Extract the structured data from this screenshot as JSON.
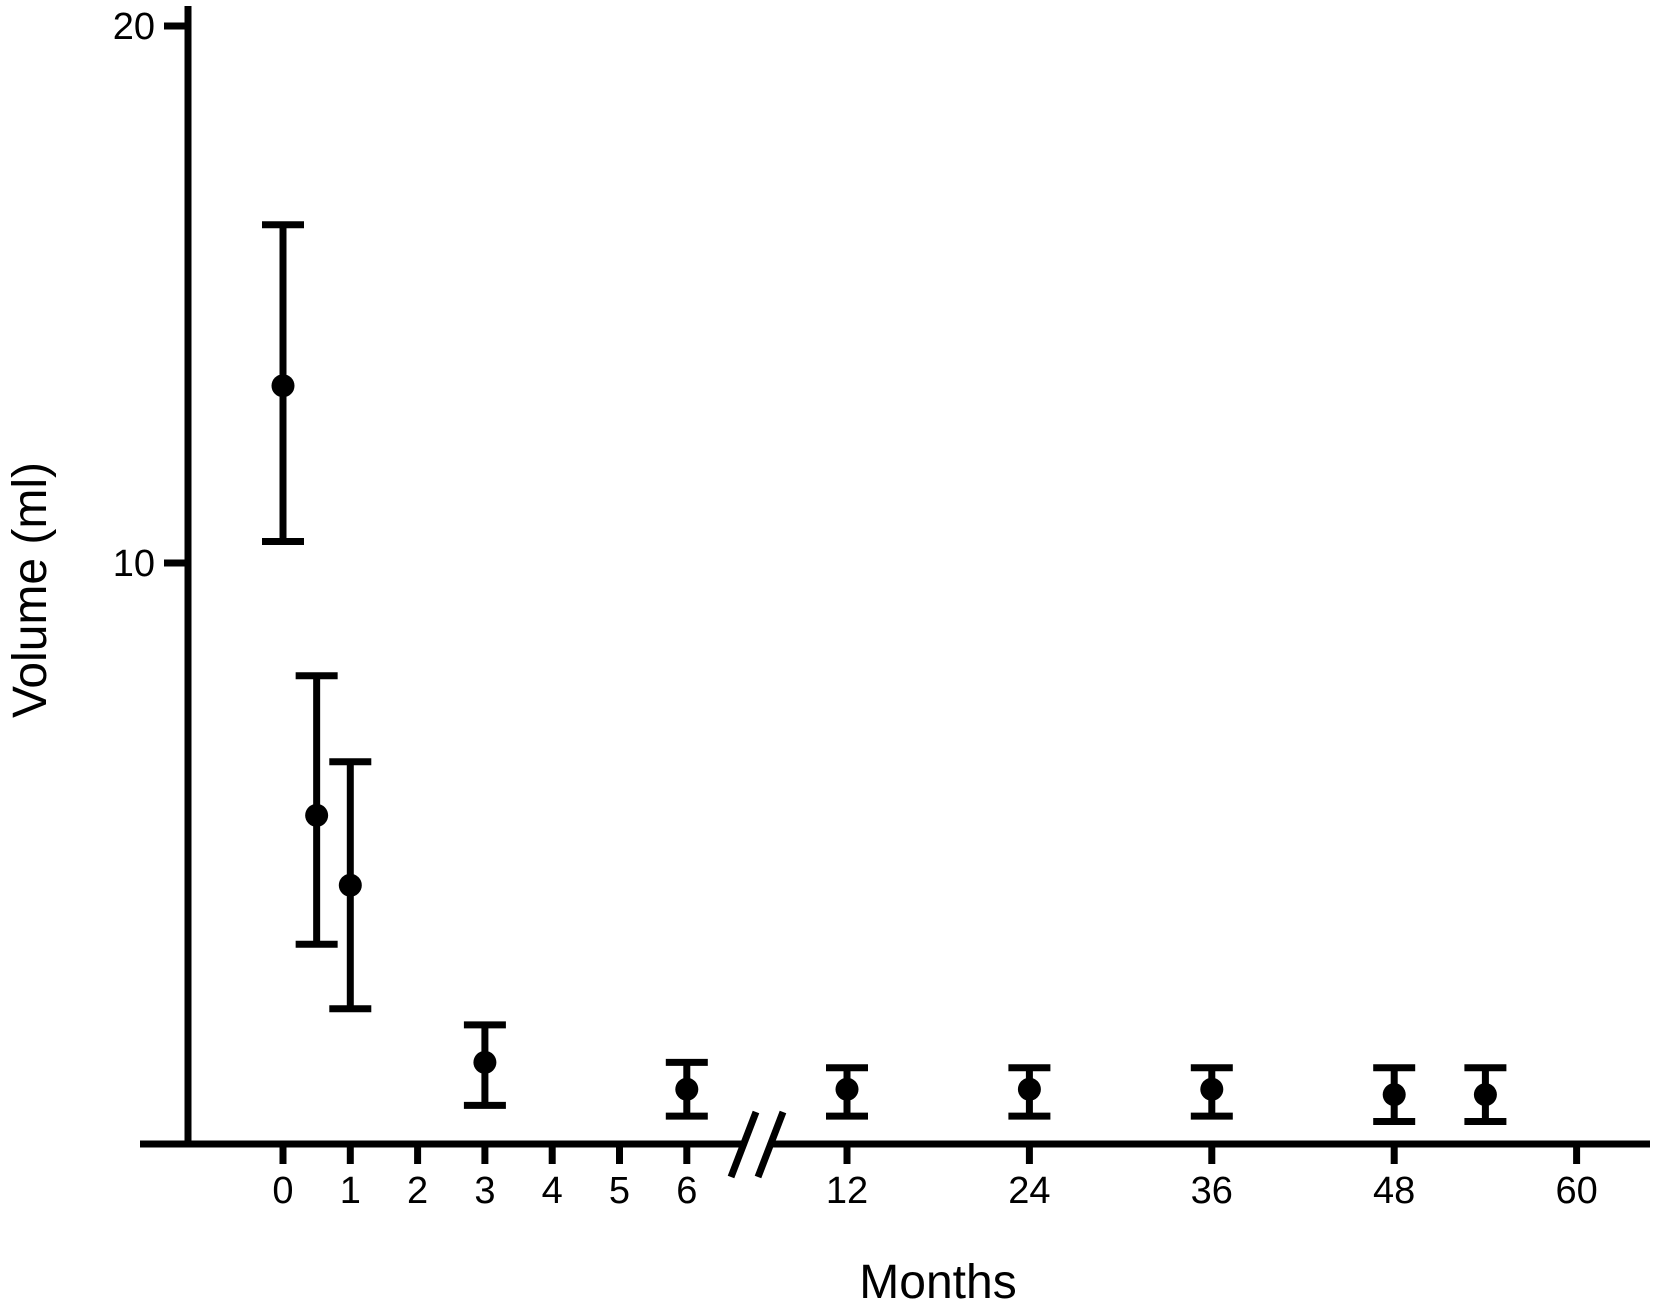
{
  "figure": {
    "background_color": "#ffffff",
    "ink_color": "#000000"
  },
  "chart_data": {
    "type": "scatter",
    "title": "",
    "xlabel": "Months",
    "ylabel": "Volume (ml)",
    "grid": false,
    "legend": null,
    "marker": "filled-circle",
    "error_bars": "vertical-with-caps",
    "y_axis": {
      "ticks": [
        10,
        20
      ],
      "tick_labels": [
        "10",
        "20"
      ],
      "range_shown": [
        0,
        20
      ]
    },
    "x_axis": {
      "segments": [
        {
          "ticks": [
            0,
            1,
            2,
            3,
            4,
            5,
            6
          ],
          "tick_labels": [
            "0",
            "1",
            "2",
            "3",
            "4",
            "5",
            "6"
          ]
        },
        {
          "ticks": [
            12,
            24,
            36,
            48,
            60
          ],
          "tick_labels": [
            "12",
            "24",
            "36",
            "48",
            "60"
          ]
        }
      ],
      "break_between": [
        6,
        12
      ]
    },
    "series": [
      {
        "name": "Volume",
        "points": [
          {
            "x": 0,
            "y": 13.3,
            "y_lo": 10.4,
            "y_hi": 16.3
          },
          {
            "x": 0.5,
            "y": 5.3,
            "y_lo": 2.9,
            "y_hi": 7.9
          },
          {
            "x": 1,
            "y": 4.0,
            "y_lo": 1.7,
            "y_hi": 6.3
          },
          {
            "x": 3,
            "y": 0.7,
            "y_lo": -0.1,
            "y_hi": 1.4
          },
          {
            "x": 6,
            "y": 0.2,
            "y_lo": -0.3,
            "y_hi": 0.7
          },
          {
            "x": 12,
            "y": 0.2,
            "y_lo": -0.3,
            "y_hi": 0.6
          },
          {
            "x": 24,
            "y": 0.2,
            "y_lo": -0.3,
            "y_hi": 0.6
          },
          {
            "x": 36,
            "y": 0.2,
            "y_lo": -0.3,
            "y_hi": 0.6
          },
          {
            "x": 48,
            "y": 0.1,
            "y_lo": -0.4,
            "y_hi": 0.6
          },
          {
            "x": 54,
            "y": 0.1,
            "y_lo": -0.4,
            "y_hi": 0.6
          }
        ]
      }
    ]
  }
}
